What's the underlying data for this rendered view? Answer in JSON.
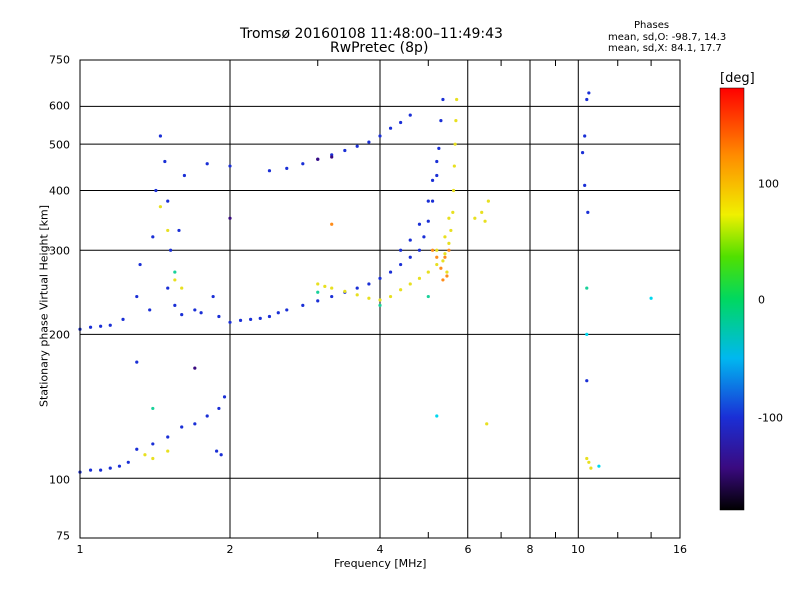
{
  "title_line1": "Tromsø 20160108 11:48:00–11:49:43",
  "title_line2": "RwPretec (8p)",
  "phases": {
    "title": "Phases",
    "o_line": "mean, sd,O: -98.7, 14.3",
    "x_line": "mean, sd,X: 84.1, 17.7"
  },
  "colors": {
    "grid": "#000000",
    "blue_trace": "#1a2fd6",
    "yellow_trace": "#e8e020"
  },
  "chart_data": {
    "type": "scatter",
    "title": "Tromsø 20160108 11:48:00–11:49:43",
    "subtitle": "RwPretec (8p)",
    "xlabel": "Frequency [MHz]",
    "ylabel": "Stationary phase Virtual Height [km]",
    "x_scale": "log",
    "y_scale": "log",
    "xlim": [
      1,
      16
    ],
    "ylim": [
      75,
      750
    ],
    "x_ticks": [
      1,
      2,
      4,
      6,
      8,
      10,
      16
    ],
    "y_ticks": [
      75,
      100,
      200,
      300,
      400,
      500,
      600,
      750
    ],
    "x_tick_labels": [
      "1",
      "2",
      "4",
      "6",
      "8",
      "10",
      "16"
    ],
    "y_tick_labels": [
      "75",
      "100",
      "200",
      "300",
      "400",
      "500",
      "600",
      "750"
    ],
    "grid": true,
    "colorbar": {
      "label": "[deg]",
      "range": [
        -180,
        180
      ],
      "ticks": [
        100,
        0,
        -100
      ],
      "tick_labels": [
        "100",
        "0",
        "-100"
      ]
    },
    "series": [
      {
        "color": "#1a2fd6",
        "points": [
          [
            1.0,
            205
          ],
          [
            1.05,
            207
          ],
          [
            1.1,
            208
          ],
          [
            1.15,
            209
          ],
          [
            1.22,
            215
          ],
          [
            1.3,
            175
          ],
          [
            1.3,
            240
          ],
          [
            1.32,
            280
          ],
          [
            1.38,
            225
          ],
          [
            1.4,
            320
          ],
          [
            1.42,
            400
          ],
          [
            1.45,
            520
          ],
          [
            1.48,
            460
          ],
          [
            1.5,
            380
          ],
          [
            1.5,
            250
          ],
          [
            1.52,
            300
          ],
          [
            1.55,
            230
          ],
          [
            1.58,
            330
          ],
          [
            1.6,
            220
          ],
          [
            1.62,
            430
          ],
          [
            1.7,
            225
          ],
          [
            1.75,
            222
          ],
          [
            1.8,
            455
          ],
          [
            1.85,
            240
          ],
          [
            1.9,
            218
          ],
          [
            2.0,
            450
          ],
          [
            2.0,
            212
          ],
          [
            2.1,
            214
          ],
          [
            2.2,
            215
          ],
          [
            2.3,
            216
          ],
          [
            2.4,
            218
          ],
          [
            2.5,
            222
          ],
          [
            2.6,
            225
          ],
          [
            2.8,
            230
          ],
          [
            3.0,
            235
          ],
          [
            3.2,
            240
          ],
          [
            3.4,
            245
          ],
          [
            3.6,
            250
          ],
          [
            3.8,
            255
          ],
          [
            4.0,
            262
          ],
          [
            4.2,
            270
          ],
          [
            4.4,
            280
          ],
          [
            4.6,
            290
          ],
          [
            4.8,
            300
          ],
          [
            4.9,
            320
          ],
          [
            5.0,
            345
          ],
          [
            5.1,
            380
          ],
          [
            5.2,
            430
          ],
          [
            5.25,
            490
          ],
          [
            5.3,
            560
          ],
          [
            5.35,
            620
          ],
          [
            4.4,
            300
          ],
          [
            4.6,
            315
          ],
          [
            4.8,
            340
          ],
          [
            5.0,
            380
          ],
          [
            5.1,
            420
          ],
          [
            5.2,
            460
          ],
          [
            2.4,
            440
          ],
          [
            2.6,
            445
          ],
          [
            2.8,
            455
          ],
          [
            3.0,
            465
          ],
          [
            3.2,
            475
          ],
          [
            3.4,
            485
          ],
          [
            3.6,
            495
          ],
          [
            3.8,
            505
          ],
          [
            4.0,
            520
          ],
          [
            4.2,
            540
          ],
          [
            4.4,
            555
          ],
          [
            4.6,
            575
          ],
          [
            1.0,
            103
          ],
          [
            1.05,
            104
          ],
          [
            1.1,
            104
          ],
          [
            1.15,
            105
          ],
          [
            1.2,
            106
          ],
          [
            1.25,
            108
          ],
          [
            1.3,
            115
          ],
          [
            1.4,
            118
          ],
          [
            1.5,
            122
          ],
          [
            1.6,
            128
          ],
          [
            1.7,
            130
          ],
          [
            1.8,
            135
          ],
          [
            1.9,
            140
          ],
          [
            1.95,
            148
          ],
          [
            1.88,
            114
          ],
          [
            1.92,
            112
          ],
          [
            10.2,
            480
          ],
          [
            10.3,
            410
          ],
          [
            10.4,
            620
          ],
          [
            10.45,
            360
          ],
          [
            10.4,
            160
          ],
          [
            10.5,
            640
          ],
          [
            10.3,
            520
          ]
        ]
      },
      {
        "color": "#e8e020",
        "points": [
          [
            3.0,
            255
          ],
          [
            3.1,
            252
          ],
          [
            3.2,
            250
          ],
          [
            3.4,
            246
          ],
          [
            3.6,
            242
          ],
          [
            3.8,
            238
          ],
          [
            4.0,
            236
          ],
          [
            4.2,
            240
          ],
          [
            4.4,
            248
          ],
          [
            4.6,
            255
          ],
          [
            4.8,
            262
          ],
          [
            5.0,
            270
          ],
          [
            5.2,
            280
          ],
          [
            5.4,
            295
          ],
          [
            5.5,
            310
          ],
          [
            5.55,
            330
          ],
          [
            5.6,
            360
          ],
          [
            5.62,
            400
          ],
          [
            5.64,
            450
          ],
          [
            5.66,
            500
          ],
          [
            5.68,
            560
          ],
          [
            5.7,
            620
          ],
          [
            5.2,
            300
          ],
          [
            5.4,
            320
          ],
          [
            5.5,
            350
          ],
          [
            5.45,
            270
          ],
          [
            5.35,
            285
          ],
          [
            1.45,
            370
          ],
          [
            1.5,
            330
          ],
          [
            1.55,
            260
          ],
          [
            1.6,
            250
          ],
          [
            1.35,
            112
          ],
          [
            1.4,
            110
          ],
          [
            1.5,
            114
          ],
          [
            6.2,
            350
          ],
          [
            6.4,
            360
          ],
          [
            6.6,
            380
          ],
          [
            6.5,
            345
          ],
          [
            6.55,
            130
          ],
          [
            10.4,
            110
          ],
          [
            10.5,
            108
          ],
          [
            10.6,
            105
          ]
        ]
      },
      {
        "color": "#ff8c1a",
        "points": [
          [
            5.1,
            300
          ],
          [
            5.2,
            290
          ],
          [
            5.3,
            275
          ],
          [
            5.4,
            290
          ],
          [
            5.5,
            300
          ],
          [
            5.45,
            265
          ],
          [
            5.35,
            260
          ],
          [
            3.2,
            340
          ]
        ]
      },
      {
        "color": "#19d19a",
        "points": [
          [
            1.4,
            140
          ],
          [
            1.55,
            270
          ],
          [
            5.0,
            240
          ],
          [
            3.0,
            245
          ],
          [
            4.0,
            230
          ],
          [
            10.4,
            250
          ]
        ]
      },
      {
        "color": "#00d8f0",
        "points": [
          [
            5.2,
            135
          ],
          [
            11.0,
            106
          ],
          [
            14.0,
            238
          ],
          [
            10.4,
            200
          ]
        ]
      },
      {
        "color": "#3a0a80",
        "points": [
          [
            3.0,
            465
          ],
          [
            3.2,
            470
          ],
          [
            2.0,
            350
          ],
          [
            1.7,
            170
          ]
        ]
      }
    ]
  }
}
